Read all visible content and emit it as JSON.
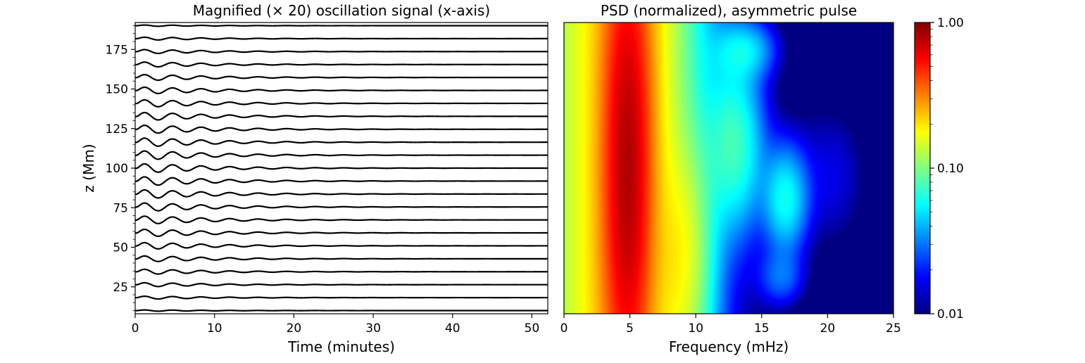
{
  "chart_data": [
    {
      "type": "line",
      "title": "Magnified (× 20) oscillation signal (x-axis)",
      "xlabel": "Time (minutes)",
      "ylabel": "z (Mm)",
      "xlim": [
        0,
        52
      ],
      "ylim": [
        8,
        192
      ],
      "xticks": [
        0,
        10,
        20,
        30,
        40,
        50
      ],
      "yticks": [
        25,
        50,
        75,
        100,
        125,
        150,
        175
      ],
      "grid": false,
      "signal": {
        "description": "stacked traces, one per height level",
        "baseline_z_start": 10,
        "baseline_z_end": 190,
        "baseline_count": 23,
        "oscillation_period_minutes": 3.6,
        "damping_timescale_minutes": 9
      }
    },
    {
      "type": "heatmap",
      "title": "PSD (normalized), asymmetric pulse",
      "xlabel": "Frequency (mHz)",
      "xlim": [
        0,
        25
      ],
      "ylim": [
        8,
        192
      ],
      "xticks": [
        0,
        5,
        10,
        15,
        20,
        25
      ],
      "colormap": "jet",
      "color_scale": "log",
      "colorbar": {
        "range": [
          0.01,
          1.0
        ],
        "ticks": [
          {
            "value": 1.0,
            "label": "1.00"
          },
          {
            "value": 0.1,
            "label": "0.10"
          },
          {
            "value": 0.01,
            "label": "0.01"
          }
        ]
      },
      "peak_frequency_mHz": 4.8
    }
  ]
}
